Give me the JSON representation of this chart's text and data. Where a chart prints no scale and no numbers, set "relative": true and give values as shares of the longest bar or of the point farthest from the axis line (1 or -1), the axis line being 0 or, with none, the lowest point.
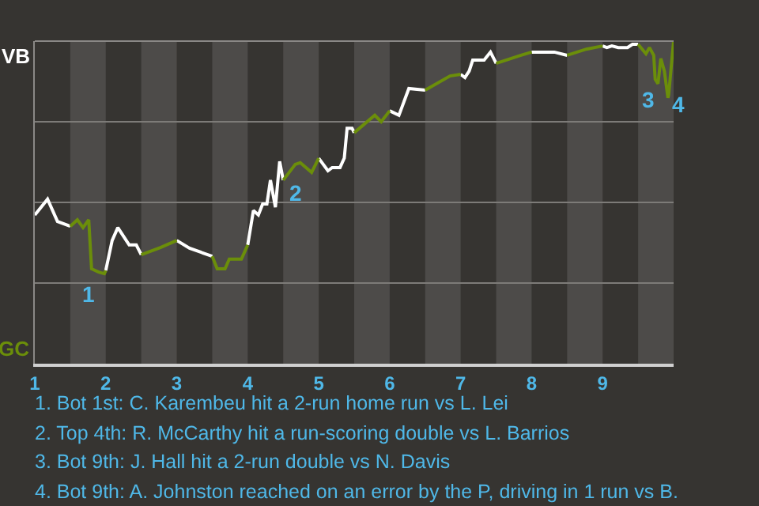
{
  "chart_data": {
    "type": "line",
    "relative": true,
    "x": [
      1.0,
      1.18,
      1.32,
      1.5,
      1.6,
      1.68,
      1.76,
      1.8,
      1.9,
      1.98,
      2.0,
      2.09,
      2.17,
      2.33,
      2.43,
      2.5,
      2.77,
      3.0,
      3.18,
      3.5,
      3.57,
      3.68,
      3.74,
      3.91,
      4.0,
      4.08,
      4.15,
      4.21,
      4.27,
      4.32,
      4.39,
      4.45,
      4.5,
      4.67,
      4.74,
      4.9,
      5.0,
      5.13,
      5.19,
      5.3,
      5.36,
      5.4,
      5.47,
      5.5,
      5.79,
      5.88,
      6.0,
      6.13,
      6.27,
      6.5,
      6.85,
      7.0,
      7.06,
      7.12,
      7.17,
      7.33,
      7.42,
      7.5,
      7.85,
      8.0,
      8.32,
      8.5,
      8.77,
      9.0,
      9.06,
      9.13,
      9.22,
      9.35,
      9.42,
      9.5,
      9.61,
      9.66,
      9.72,
      9.74,
      9.78,
      9.82,
      9.87,
      9.92,
      9.93,
      10.0
    ],
    "series": [
      {
        "color": "#ffffff",
        "values": [
          0.461,
          0.51,
          0.441,
          0.426,
          null,
          null,
          null,
          null,
          null,
          null,
          0.289,
          0.382,
          0.422,
          0.368,
          0.368,
          0.338,
          null,
          0.382,
          0.358,
          0.333,
          null,
          null,
          null,
          null,
          0.368,
          0.475,
          0.461,
          0.495,
          0.495,
          0.569,
          0.485,
          0.627,
          0.569,
          null,
          null,
          null,
          0.637,
          0.598,
          0.608,
          0.608,
          0.637,
          0.73,
          0.73,
          0.716,
          null,
          null,
          0.784,
          0.77,
          0.853,
          0.848,
          null,
          0.897,
          0.887,
          0.907,
          0.941,
          0.941,
          0.966,
          0.931,
          null,
          0.966,
          0.966,
          0.956,
          null,
          0.985,
          0.98,
          0.985,
          0.98,
          0.98,
          0.99,
          0.99,
          null,
          null,
          null,
          null,
          null,
          null,
          null,
          null,
          null,
          null
        ]
      },
      {
        "color": "#6b8e0a",
        "values": [
          null,
          null,
          null,
          0.426,
          0.446,
          0.422,
          0.446,
          0.294,
          0.284,
          0.279,
          0.289,
          null,
          null,
          null,
          null,
          0.338,
          0.36,
          0.382,
          null,
          0.333,
          0.294,
          0.294,
          0.324,
          0.324,
          0.368,
          null,
          null,
          null,
          null,
          null,
          null,
          null,
          0.569,
          0.618,
          0.623,
          0.593,
          0.637,
          null,
          null,
          null,
          null,
          null,
          null,
          0.716,
          0.77,
          0.75,
          0.784,
          null,
          null,
          0.848,
          0.892,
          0.897,
          null,
          null,
          null,
          null,
          null,
          0.931,
          0.956,
          0.966,
          null,
          0.956,
          0.975,
          0.985,
          null,
          null,
          null,
          null,
          null,
          0.99,
          0.961,
          0.98,
          0.956,
          0.882,
          0.868,
          0.946,
          0.907,
          0.824,
          0.833,
          1.0
        ]
      }
    ],
    "xlim": [
      1,
      10
    ],
    "xticks": [
      1,
      2,
      3,
      4,
      5,
      6,
      7,
      8,
      9
    ],
    "ref_lines": [
      {
        "axis": "y",
        "value": 0.25,
        "color": "#7d7b78"
      },
      {
        "axis": "y",
        "value": 0.5,
        "color": "#7d7b78"
      },
      {
        "axis": "y",
        "value": 0.75,
        "color": "#7d7b78"
      }
    ],
    "bands": [
      {
        "axis": "x",
        "from": 1.5,
        "to": 2,
        "color": "#4d4b49"
      },
      {
        "axis": "x",
        "from": 2.5,
        "to": 3,
        "color": "#4d4b49"
      },
      {
        "axis": "x",
        "from": 3.5,
        "to": 4,
        "color": "#4d4b49"
      },
      {
        "axis": "x",
        "from": 4.5,
        "to": 5,
        "color": "#4d4b49"
      },
      {
        "axis": "x",
        "from": 5.5,
        "to": 6,
        "color": "#4d4b49"
      },
      {
        "axis": "x",
        "from": 6.5,
        "to": 7,
        "color": "#4d4b49"
      },
      {
        "axis": "x",
        "from": 7.5,
        "to": 8,
        "color": "#4d4b49"
      },
      {
        "axis": "x",
        "from": 8.5,
        "to": 9,
        "color": "#4d4b49"
      },
      {
        "axis": "x",
        "from": 9.5,
        "to": 10,
        "color": "#4d4b49"
      }
    ],
    "annotations": [
      "VB",
      "GC",
      {
        "text": "1",
        "x": 1.9,
        "y": 0.284
      },
      {
        "text": "2",
        "x": 4.5,
        "y": 0.569
      },
      {
        "text": "3",
        "x": 9.78,
        "y": 0.868
      },
      {
        "text": "4",
        "x": 9.93,
        "y": 0.833
      },
      "1. Bot 1st: C. Karembeu hit a 2-run home run vs L. Lei",
      "2. Top 4th: R. McCarthy hit a run-scoring double vs L. Barrios",
      "3. Bot 9th: J. Hall hit a 2-run double vs N. Davis",
      "4. Bot 9th: A. Johnston reached on an error by the P, driving in 1 run vs B."
    ]
  }
}
